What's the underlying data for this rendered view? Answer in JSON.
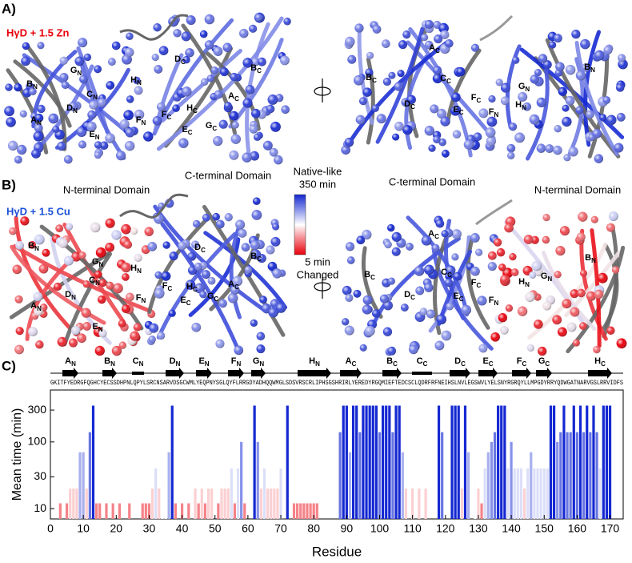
{
  "panels": {
    "a": {
      "letter": "A)",
      "condition": "HγD + 1.5 Zn"
    },
    "b": {
      "letter": "B)",
      "condition": "HγD + 1.5 Cu",
      "domains": [
        "N-terminal Domain",
        "C-terminal Domain",
        "C-terminal Domain",
        "N-terminal Domain"
      ]
    },
    "c": {
      "letter": "C)"
    }
  },
  "structures": [
    {
      "labels": [
        {
          "t": "B",
          "s": "N"
        },
        {
          "t": "G",
          "s": "N"
        },
        {
          "t": "H",
          "s": "N"
        },
        {
          "t": "C",
          "s": "N"
        },
        {
          "t": "D",
          "s": "N"
        },
        {
          "t": "A",
          "s": "N"
        },
        {
          "t": "E",
          "s": "N"
        },
        {
          "t": "F",
          "s": "N"
        },
        {
          "t": "F",
          "s": "C"
        },
        {
          "t": "D",
          "s": "C"
        },
        {
          "t": "B",
          "s": "C"
        },
        {
          "t": "A",
          "s": "C"
        },
        {
          "t": "E",
          "s": "C"
        },
        {
          "t": "G",
          "s": "C"
        },
        {
          "t": "H",
          "s": "C"
        }
      ]
    },
    {
      "labels": [
        {
          "t": "A",
          "s": "C"
        },
        {
          "t": "B",
          "s": "C"
        },
        {
          "t": "C",
          "s": "C"
        },
        {
          "t": "D",
          "s": "C"
        },
        {
          "t": "E",
          "s": "C"
        },
        {
          "t": "F",
          "s": "C"
        },
        {
          "t": "G",
          "s": "N"
        },
        {
          "t": "H",
          "s": "N"
        },
        {
          "t": "F",
          "s": "N"
        },
        {
          "t": "B",
          "s": "N"
        }
      ]
    },
    {
      "labels": [
        {
          "t": "B",
          "s": "N"
        },
        {
          "t": "G",
          "s": "N"
        },
        {
          "t": "H",
          "s": "N"
        },
        {
          "t": "C",
          "s": "N"
        },
        {
          "t": "D",
          "s": "N"
        },
        {
          "t": "A",
          "s": "N"
        },
        {
          "t": "E",
          "s": "N"
        },
        {
          "t": "F",
          "s": "N"
        },
        {
          "t": "F",
          "s": "C"
        },
        {
          "t": "D",
          "s": "C"
        },
        {
          "t": "B",
          "s": "C"
        },
        {
          "t": "A",
          "s": "C"
        },
        {
          "t": "E",
          "s": "C"
        },
        {
          "t": "H",
          "s": "C"
        },
        {
          "t": "G",
          "s": "C"
        }
      ]
    },
    {
      "labels": [
        {
          "t": "A",
          "s": "C"
        },
        {
          "t": "B",
          "s": "C"
        },
        {
          "t": "C",
          "s": "C"
        },
        {
          "t": "D",
          "s": "C"
        },
        {
          "t": "E",
          "s": "C"
        },
        {
          "t": "F",
          "s": "C"
        },
        {
          "t": "F",
          "s": "N"
        },
        {
          "t": "H",
          "s": "N"
        },
        {
          "t": "G",
          "s": "N"
        },
        {
          "t": "B",
          "s": "N"
        }
      ]
    }
  ],
  "colorbar": {
    "top_label": "Native-like",
    "max_label": "350 min",
    "min_label": "5 min",
    "bottom_label": "Changed"
  },
  "chart_data": {
    "type": "bar",
    "x_label": "Residue",
    "y_label": "Mean time (min)",
    "sequence": "GKITFYEDRGFQGHCYECSSDHPNLQPYLSRCNSARVDSGCWMLYEQPNYSGLQYFLRRGDYADHQQWMGLSDSVRSCRLIPHSGSHRIRLYEREDYRGQMIEFTEDCSCLQDRFRFNEIHSLNVLEGSWVLYELSNYRGRQYLLMPGDYRRYQDWGATNARVGSLRRVIDFS",
    "secondary_structure": [
      {
        "t": "A",
        "s": "N"
      },
      {
        "t": "B",
        "s": "N"
      },
      {
        "t": "C",
        "s": "N"
      },
      {
        "t": "D",
        "s": "N"
      },
      {
        "t": "E",
        "s": "N"
      },
      {
        "t": "F",
        "s": "N"
      },
      {
        "t": "G",
        "s": "N"
      },
      {
        "t": "H",
        "s": "N"
      },
      {
        "t": "A",
        "s": "C"
      },
      {
        "t": "B",
        "s": "C"
      },
      {
        "t": "C",
        "s": "C"
      },
      {
        "t": "D",
        "s": "C"
      },
      {
        "t": "E",
        "s": "C"
      },
      {
        "t": "F",
        "s": "C"
      },
      {
        "t": "G",
        "s": "C"
      },
      {
        "t": "H",
        "s": "C"
      }
    ],
    "x": [
      3,
      5,
      6,
      7,
      8,
      9,
      10,
      11,
      12,
      13,
      14,
      15,
      17,
      19,
      21,
      24,
      28,
      29,
      30,
      31,
      32,
      33,
      34,
      35,
      36,
      37,
      38,
      40,
      42,
      44,
      45,
      46,
      47,
      48,
      49,
      51,
      52,
      53,
      54,
      55,
      56,
      57,
      58,
      59,
      62,
      63,
      64,
      65,
      66,
      67,
      68,
      69,
      70,
      72,
      74,
      75,
      76,
      77,
      78,
      79,
      80,
      81,
      88,
      89,
      90,
      91,
      92,
      93,
      94,
      95,
      96,
      97,
      98,
      99,
      100,
      101,
      102,
      103,
      104,
      105,
      106,
      107,
      108,
      110,
      112,
      114,
      118,
      119,
      122,
      123,
      124,
      125,
      126,
      127,
      129,
      130,
      131,
      132,
      133,
      134,
      135,
      136,
      137,
      138,
      139,
      140,
      141,
      142,
      143,
      144,
      145,
      146,
      147,
      148,
      149,
      150,
      151,
      152,
      153,
      154,
      155,
      156,
      157,
      158,
      159,
      160,
      161,
      162,
      163,
      164,
      165,
      166,
      167,
      168,
      169,
      170
    ],
    "values": [
      12,
      12,
      20,
      20,
      20,
      70,
      70,
      20,
      140,
      350,
      12,
      12,
      12,
      12,
      12,
      12,
      12,
      12,
      12,
      20,
      40,
      20,
      28,
      28,
      70,
      350,
      12,
      12,
      12,
      20,
      12,
      20,
      12,
      20,
      20,
      12,
      20,
      20,
      20,
      40,
      12,
      40,
      100,
      12,
      350,
      100,
      20,
      40,
      20,
      20,
      20,
      20,
      40,
      350,
      12,
      12,
      12,
      12,
      12,
      12,
      12,
      12,
      140,
      350,
      350,
      70,
      350,
      350,
      140,
      350,
      350,
      350,
      350,
      350,
      140,
      350,
      350,
      350,
      140,
      350,
      350,
      70,
      20,
      20,
      20,
      20,
      350,
      140,
      350,
      350,
      350,
      20,
      350,
      70,
      28,
      20,
      12,
      40,
      70,
      100,
      140,
      350,
      350,
      350,
      40,
      100,
      40,
      40,
      40,
      20,
      40,
      70,
      40,
      40,
      40,
      40,
      40,
      350,
      350,
      100,
      140,
      350,
      140,
      140,
      350,
      140,
      350,
      140,
      350,
      140,
      350,
      140,
      40,
      350,
      350,
      350
    ],
    "xlim": [
      0,
      174
    ],
    "ylim": [
      7,
      600
    ],
    "log_y": true,
    "xticks": [
      0,
      10,
      20,
      30,
      40,
      50,
      60,
      70,
      80,
      90,
      100,
      110,
      120,
      130,
      140,
      150,
      160,
      170
    ],
    "yticks": [
      10,
      30,
      100,
      300
    ],
    "color_domain": [
      5,
      350
    ],
    "colors": {
      "changed": "#e8000b",
      "middle": "#ffffff",
      "native": "#1428d2"
    }
  }
}
